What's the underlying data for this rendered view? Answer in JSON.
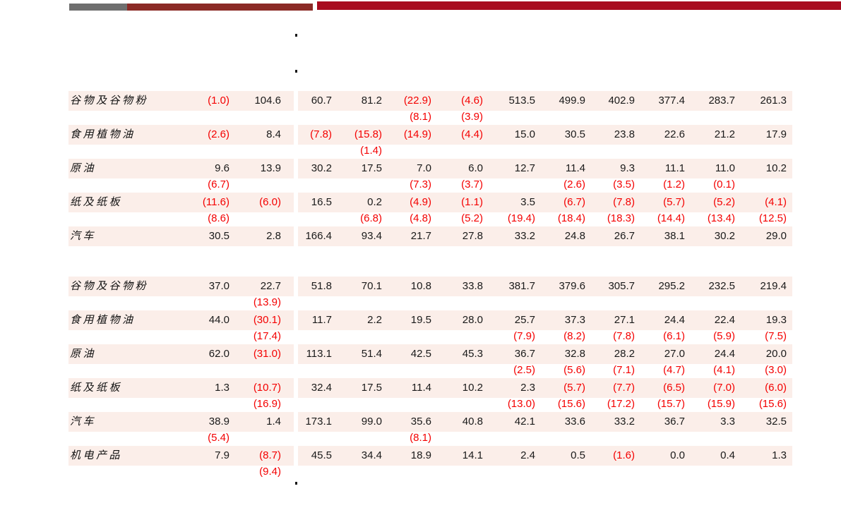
{
  "header_bars": {
    "gray": "#6f6f6f",
    "dark_red": "#8b2a26",
    "bright_red": "#a80c1f"
  },
  "colors": {
    "row_bg": "#fbeee9",
    "positive_text": "#1a1a1a",
    "negative_text": "#f40000"
  },
  "table": {
    "blocks": [
      {
        "rows": [
          {
            "label": "谷物及谷物粉",
            "values": [
              "(1.0)",
              "104.6",
              "60.7",
              "81.2",
              "(22.9)",
              "(4.6)",
              "513.5",
              "499.9",
              "402.9",
              "377.4",
              "283.7",
              "261.3"
            ],
            "sub": [
              "",
              "",
              "",
              "",
              "(8.1)",
              "(3.9)",
              "",
              "",
              "",
              "",
              "",
              ""
            ]
          },
          {
            "label": "食用植物油",
            "values": [
              "(2.6)",
              "8.4",
              "(7.8)",
              "(15.8)",
              "(14.9)",
              "(4.4)",
              "15.0",
              "30.5",
              "23.8",
              "22.6",
              "21.2",
              "17.9"
            ],
            "sub": [
              "",
              "",
              "",
              "(1.4)",
              "",
              "",
              "",
              "",
              "",
              "",
              "",
              ""
            ]
          },
          {
            "label": "原油",
            "values": [
              "9.6",
              "13.9",
              "30.2",
              "17.5",
              "7.0",
              "6.0",
              "12.7",
              "11.4",
              "9.3",
              "11.1",
              "11.0",
              "10.2"
            ],
            "sub": [
              "(6.7)",
              "",
              "",
              "",
              "(7.3)",
              "(3.7)",
              "",
              "(2.6)",
              "(3.5)",
              "(1.2)",
              "(0.1)",
              ""
            ]
          },
          {
            "label": "纸及纸板",
            "values": [
              "(11.6)",
              "(6.0)",
              "16.5",
              "0.2",
              "(4.9)",
              "(1.1)",
              "3.5",
              "(6.7)",
              "(7.8)",
              "(5.7)",
              "(5.2)",
              "(4.1)"
            ],
            "sub": [
              "(8.6)",
              "",
              "",
              "(6.8)",
              "(4.8)",
              "(5.2)",
              "(19.4)",
              "(18.4)",
              "(18.3)",
              "(14.4)",
              "(13.4)",
              "(12.5)"
            ]
          },
          {
            "label": "汽车",
            "values": [
              "30.5",
              "2.8",
              "166.4",
              "93.4",
              "21.7",
              "27.8",
              "33.2",
              "24.8",
              "26.7",
              "38.1",
              "30.2",
              "29.0"
            ],
            "sub": [
              "",
              "",
              "",
              "",
              "",
              "",
              "",
              "",
              "",
              "",
              "",
              ""
            ]
          }
        ]
      },
      {
        "rows": [
          {
            "label": "谷物及谷物粉",
            "values": [
              "37.0",
              "22.7",
              "51.8",
              "70.1",
              "10.8",
              "33.8",
              "381.7",
              "379.6",
              "305.7",
              "295.2",
              "232.5",
              "219.4"
            ],
            "sub": [
              "",
              "(13.9)",
              "",
              "",
              "",
              "",
              "",
              "",
              "",
              "",
              "",
              ""
            ]
          },
          {
            "label": "食用植物油",
            "values": [
              "44.0",
              "(30.1)",
              "11.7",
              "2.2",
              "19.5",
              "28.0",
              "25.7",
              "37.3",
              "27.1",
              "24.4",
              "22.4",
              "19.3"
            ],
            "sub": [
              "",
              "(17.4)",
              "",
              "",
              "",
              "",
              "(7.9)",
              "(8.2)",
              "(7.8)",
              "(6.1)",
              "(5.9)",
              "(7.5)"
            ]
          },
          {
            "label": "原油",
            "values": [
              "62.0",
              "(31.0)",
              "113.1",
              "51.4",
              "42.5",
              "45.3",
              "36.7",
              "32.8",
              "28.2",
              "27.0",
              "24.4",
              "20.0"
            ],
            "sub": [
              "",
              "",
              "",
              "",
              "",
              "",
              "(2.5)",
              "(5.6)",
              "(7.1)",
              "(4.7)",
              "(4.1)",
              "(3.0)"
            ]
          },
          {
            "label": "纸及纸板",
            "values": [
              "1.3",
              "(10.7)",
              "32.4",
              "17.5",
              "11.4",
              "10.2",
              "2.3",
              "(5.7)",
              "(7.7)",
              "(6.5)",
              "(7.0)",
              "(6.0)"
            ],
            "sub": [
              "",
              "(16.9)",
              "",
              "",
              "",
              "",
              "(13.0)",
              "(15.6)",
              "(17.2)",
              "(15.7)",
              "(15.9)",
              "(15.6)"
            ]
          },
          {
            "label": "汽车",
            "values": [
              "38.9",
              "1.4",
              "173.1",
              "99.0",
              "35.6",
              "40.8",
              "42.1",
              "33.6",
              "33.2",
              "36.7",
              "3.3",
              "32.5"
            ],
            "sub": [
              "(5.4)",
              "",
              "",
              "",
              "(8.1)",
              "",
              "",
              "",
              "",
              "",
              "",
              ""
            ]
          },
          {
            "label": "机电产品",
            "values": [
              "7.9",
              "(8.7)",
              "45.5",
              "34.4",
              "18.9",
              "14.1",
              "2.4",
              "0.5",
              "(1.6)",
              "0.0",
              "0.4",
              "1.3"
            ],
            "sub": [
              "",
              "(9.4)",
              "",
              "",
              "",
              "",
              "",
              "",
              "",
              "",
              "",
              ""
            ]
          }
        ]
      }
    ]
  }
}
